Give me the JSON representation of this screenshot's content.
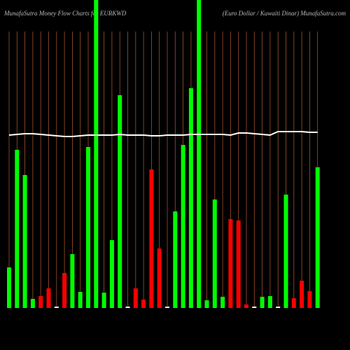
{
  "chart_data": {
    "type": "bar",
    "title": "MunafaSutra  Money Flow  Charts for EURKWD",
    "subtitle": "(Euro Dollar / Kuwaiti  Dinar) MunafaSutra.com",
    "categories": [
      null,
      null,
      null,
      null,
      null,
      null,
      null,
      null,
      null,
      null,
      null,
      null,
      null,
      null,
      null,
      null,
      null,
      null,
      null,
      null,
      null,
      null,
      null,
      null,
      null,
      null,
      null,
      null,
      null,
      null,
      null,
      null,
      null,
      null,
      null,
      null,
      null,
      null,
      null,
      null
    ],
    "values": [
      58,
      226,
      190,
      13,
      17,
      28,
      2,
      50,
      77,
      23,
      230,
      440,
      22,
      97,
      304,
      2,
      28,
      12,
      198,
      85,
      2,
      138,
      233,
      314,
      440,
      11,
      155,
      16,
      127,
      125,
      5,
      2,
      16,
      17,
      2,
      162,
      14,
      39,
      24,
      201
    ],
    "bar_colors": [
      "#00ff00",
      "#00ff00",
      "#00ff00",
      "#00ff00",
      "#ff0000",
      "#ff0000",
      "#ffffff",
      "#ff0000",
      "#00ff00",
      "#00ff00",
      "#00ff00",
      "#00ff00",
      "#00ff00",
      "#00ff00",
      "#00ff00",
      "#ffffff",
      "#ff0000",
      "#ff0000",
      "#ff0000",
      "#ff0000",
      "#ffffff",
      "#00ff00",
      "#00ff00",
      "#00ff00",
      "#00ff00",
      "#00ff00",
      "#00ff00",
      "#00ff00",
      "#ff0000",
      "#ff0000",
      "#ff0000",
      "#ffffff",
      "#00ff00",
      "#00ff00",
      "#ffffff",
      "#00ff00",
      "#ff0000",
      "#ff0000",
      "#ff0000",
      "#00ff00"
    ],
    "line": {
      "color": "#ffffff",
      "values": [
        247,
        248,
        249,
        249,
        248,
        247,
        246,
        245,
        245,
        246,
        247,
        247,
        247,
        247,
        248,
        247,
        247,
        247,
        246,
        246,
        247,
        247,
        247,
        248,
        248,
        248,
        248,
        248,
        247,
        250,
        250,
        249,
        248,
        247,
        252,
        252,
        252,
        252,
        251,
        251
      ]
    },
    "grid_color": "#a0522d",
    "ylim": [
      0,
      440
    ]
  }
}
